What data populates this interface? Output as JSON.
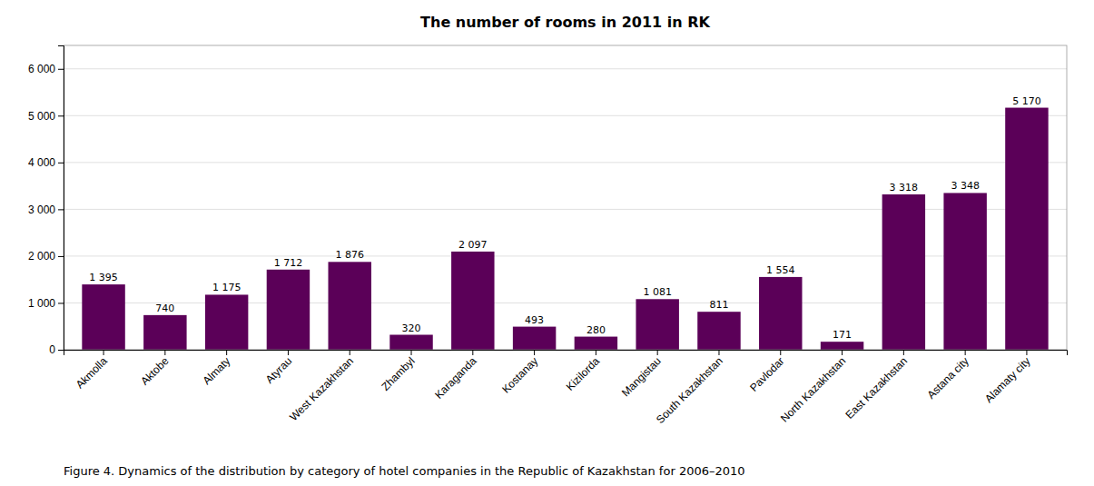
{
  "chart_data": {
    "type": "bar",
    "title": "The number of rooms in 2011 in RK",
    "caption": "Figure 4. Dynamics of the distribution by category of hotel companies in the Republic of Kazakhstan for 2006–2010",
    "categories": [
      "Akmolla",
      "Aktobe",
      "Almaty",
      "Atyrau",
      "West Kazakhstan",
      "Zhambyl",
      "Karaganda",
      "Kostanay",
      "Kizilorda",
      "Mangistau",
      "South Kazakhstan",
      "Pavlodar",
      "North Kazakhstan",
      "East Kazakhstan",
      "Astana city",
      "Alamaty city"
    ],
    "values": [
      1395,
      740,
      1175,
      1712,
      1876,
      320,
      2097,
      493,
      280,
      1081,
      811,
      1554,
      171,
      3318,
      3348,
      5170
    ],
    "value_labels": [
      "1 395",
      "740",
      "1 175",
      "1 712",
      "1 876",
      "320",
      "2 097",
      "493",
      "280",
      "1 081",
      "811",
      "1 554",
      "171",
      "3 318",
      "3 348",
      "5 170"
    ],
    "color": "#5B0058",
    "ylim": [
      0,
      6500
    ],
    "yticks": [
      0,
      {
        "value": 1000,
        "label": "1 000"
      },
      {
        "value": 2000,
        "label": "2 000"
      },
      {
        "value": 3000,
        "label": "3 000"
      },
      {
        "value": 4000,
        "label": "4 000"
      },
      {
        "value": 5000,
        "label": "5 000"
      },
      {
        "value": 6000,
        "label": "6 000"
      }
    ],
    "grid": true,
    "data_labels": true
  }
}
